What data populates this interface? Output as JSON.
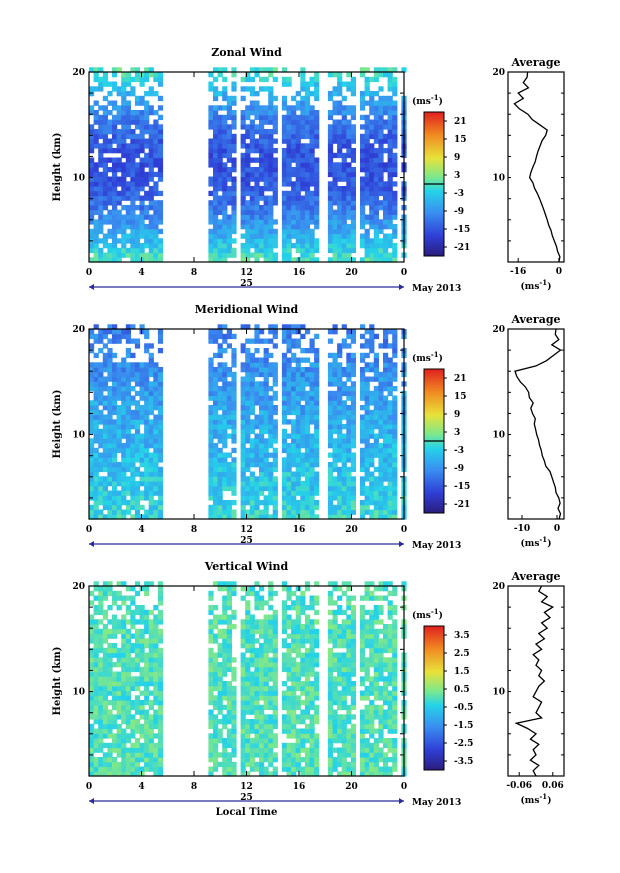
{
  "chart_data": [
    {
      "type": "heatmap",
      "title": "Zonal Wind",
      "ylabel": "Height (km)",
      "ylim": [
        2,
        20
      ],
      "xlim": [
        0,
        24
      ],
      "x_ticks": [
        "0",
        "4",
        "8",
        "12",
        "16",
        "20",
        "0"
      ],
      "y_ticks": [
        "10",
        "20"
      ],
      "day_label": "25",
      "date_label": "May 2013",
      "colorbar": {
        "unit": "(ms",
        "unit_exp": "-1",
        "unit_close": ")",
        "ticks": [
          "21",
          "15",
          "9",
          "3",
          "-3",
          "-9",
          "-15",
          "-21"
        ],
        "range": [
          -24,
          24
        ],
        "zero_marker": 0
      },
      "average": {
        "title": "Average",
        "xlabel": "(ms",
        "xlabel_exp": "-1",
        "xlabel_close": ")",
        "x_ticks": [
          "-16",
          "0"
        ],
        "xlim": [
          -20,
          2
        ],
        "profile": [
          [
            2,
            0
          ],
          [
            2.5,
            0.4
          ],
          [
            3,
            -0.5
          ],
          [
            3.5,
            -1
          ],
          [
            4,
            -1.8
          ],
          [
            4.5,
            -2.6
          ],
          [
            5,
            -3.1
          ],
          [
            5.5,
            -4
          ],
          [
            6,
            -4.6
          ],
          [
            6.5,
            -5.3
          ],
          [
            7,
            -6
          ],
          [
            7.5,
            -6.8
          ],
          [
            8,
            -7.6
          ],
          [
            8.5,
            -8.5
          ],
          [
            9,
            -9.6
          ],
          [
            9.5,
            -10.2
          ],
          [
            10,
            -11.5
          ],
          [
            10.5,
            -11
          ],
          [
            11,
            -10.2
          ],
          [
            11.5,
            -9.3
          ],
          [
            12,
            -8.8
          ],
          [
            12.5,
            -8.2
          ],
          [
            13,
            -7.4
          ],
          [
            13.5,
            -6.6
          ],
          [
            14,
            -5.2
          ],
          [
            14.5,
            -4.6
          ],
          [
            15,
            -7.5
          ],
          [
            15.5,
            -10.5
          ],
          [
            16,
            -12.2
          ],
          [
            16.5,
            -15.5
          ],
          [
            17,
            -17.5
          ],
          [
            17.5,
            -14
          ],
          [
            18,
            -16
          ],
          [
            18.5,
            -12
          ],
          [
            19,
            -14
          ],
          [
            19.5,
            -12.5
          ],
          [
            20,
            -12.3
          ]
        ]
      },
      "gaps": [
        [
          5.3,
          8.8
        ],
        [
          17.3,
          18.1
        ]
      ]
    },
    {
      "type": "heatmap",
      "title": "Meridional Wind",
      "ylabel": "Height (km)",
      "ylim": [
        2,
        20
      ],
      "xlim": [
        0,
        24
      ],
      "x_ticks": [
        "0",
        "4",
        "8",
        "12",
        "16",
        "20",
        "0"
      ],
      "y_ticks": [
        "10",
        "20"
      ],
      "day_label": "25",
      "date_label": "May 2013",
      "colorbar": {
        "unit": "(ms",
        "unit_exp": "-1",
        "unit_close": ")",
        "ticks": [
          "21",
          "15",
          "9",
          "3",
          "-3",
          "-9",
          "-15",
          "-21"
        ],
        "range": [
          -24,
          24
        ],
        "zero_marker": 0
      },
      "average": {
        "title": "Average",
        "xlabel": "(ms",
        "xlabel_exp": "-1",
        "xlabel_close": ")",
        "x_ticks": [
          "-10",
          "0"
        ],
        "xlim": [
          -14,
          2
        ],
        "profile": [
          [
            2,
            0.6
          ],
          [
            2.5,
            1
          ],
          [
            3,
            0.3
          ],
          [
            3.5,
            0.9
          ],
          [
            4,
            0.5
          ],
          [
            4.5,
            -0.3
          ],
          [
            5,
            -0.5
          ],
          [
            5.5,
            -1
          ],
          [
            6,
            -1.5
          ],
          [
            6.5,
            -2
          ],
          [
            7,
            -3.2
          ],
          [
            7.5,
            -3.6
          ],
          [
            8,
            -4.2
          ],
          [
            8.5,
            -4.5
          ],
          [
            9,
            -5
          ],
          [
            9.5,
            -5.3
          ],
          [
            10,
            -5.8
          ],
          [
            10.5,
            -6.1
          ],
          [
            11,
            -6.5
          ],
          [
            11.5,
            -6.2
          ],
          [
            12,
            -7
          ],
          [
            12.5,
            -7.5
          ],
          [
            13,
            -6.8
          ],
          [
            13.5,
            -7.9
          ],
          [
            14,
            -8.1
          ],
          [
            14.5,
            -9
          ],
          [
            15,
            -10.5
          ],
          [
            15.5,
            -11.5
          ],
          [
            16,
            -12
          ],
          [
            16.5,
            -6
          ],
          [
            17,
            -3
          ],
          [
            17.5,
            -1
          ],
          [
            18,
            1
          ],
          [
            18.5,
            -1.5
          ],
          [
            19,
            0.5
          ],
          [
            19.5,
            -0.5
          ],
          [
            20,
            -0.3
          ]
        ]
      },
      "gaps": [
        [
          5.3,
          8.8
        ],
        [
          17.3,
          18.1
        ]
      ]
    },
    {
      "type": "heatmap",
      "title": "Vertical Wind",
      "ylabel": "Height (km)",
      "xlabel": "Local Time",
      "ylim": [
        2,
        20
      ],
      "xlim": [
        0,
        24
      ],
      "x_ticks": [
        "0",
        "4",
        "8",
        "12",
        "16",
        "20",
        "0"
      ],
      "y_ticks": [
        "10",
        "20"
      ],
      "day_label": "25",
      "date_label": "May 2013",
      "colorbar": {
        "unit": "(ms",
        "unit_exp": "-1",
        "unit_close": ")",
        "ticks": [
          "3.5",
          "2.5",
          "1.5",
          "0.5",
          "-0.5",
          "-1.5",
          "-2.5",
          "-3.5"
        ],
        "range": [
          -4,
          4
        ]
      },
      "average": {
        "title": "Average",
        "xlabel": "(ms",
        "xlabel_exp": "-1",
        "xlabel_close": ")",
        "x_ticks": [
          "-0.06",
          "0.06"
        ],
        "xlim": [
          -0.1,
          0.1
        ],
        "profile": [
          [
            2,
            0
          ],
          [
            2.5,
            -0.01
          ],
          [
            3,
            0.01
          ],
          [
            3.5,
            -0.02
          ],
          [
            4,
            0
          ],
          [
            4.5,
            -0.01
          ],
          [
            5,
            0.01
          ],
          [
            5.5,
            -0.02
          ],
          [
            6,
            0
          ],
          [
            6.5,
            -0.03
          ],
          [
            7,
            -0.07
          ],
          [
            7.5,
            0.02
          ],
          [
            8,
            0
          ],
          [
            8.5,
            0.01
          ],
          [
            9,
            0.02
          ],
          [
            9.5,
            -0.01
          ],
          [
            10,
            0
          ],
          [
            10.5,
            0.01
          ],
          [
            11,
            0.03
          ],
          [
            11.5,
            0.01
          ],
          [
            12,
            0.02
          ],
          [
            12.5,
            0
          ],
          [
            13,
            0.01
          ],
          [
            13.5,
            -0.01
          ],
          [
            14,
            0.02
          ],
          [
            14.5,
            0
          ],
          [
            15,
            0.03
          ],
          [
            15.5,
            0.01
          ],
          [
            16,
            0.04
          ],
          [
            16.5,
            0.02
          ],
          [
            17,
            0.05
          ],
          [
            17.5,
            0.03
          ],
          [
            18,
            0.06
          ],
          [
            18.5,
            0.02
          ],
          [
            19,
            0.04
          ],
          [
            19.5,
            0.01
          ],
          [
            20,
            0.02
          ]
        ]
      },
      "gaps": [
        [
          5.3,
          8.8
        ],
        [
          17.3,
          18.1
        ]
      ]
    }
  ]
}
